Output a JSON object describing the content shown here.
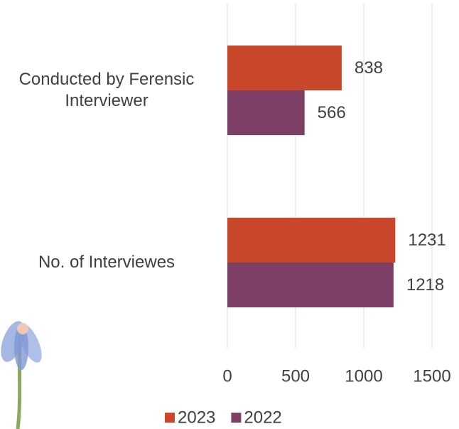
{
  "chart_data": {
    "type": "bar",
    "orientation": "horizontal",
    "categories": [
      "Conducted by Ferensic Interviewer",
      "No. of Interviewes"
    ],
    "series": [
      {
        "name": "2023",
        "color": "#c9482b",
        "values": [
          838,
          1231
        ]
      },
      {
        "name": "2022",
        "color": "#7d3f66",
        "values": [
          566,
          1218
        ]
      }
    ],
    "xlim": [
      0,
      1500
    ],
    "xticks": [
      0,
      500,
      1000,
      1500
    ],
    "grid": true,
    "legend": "bottom"
  }
}
